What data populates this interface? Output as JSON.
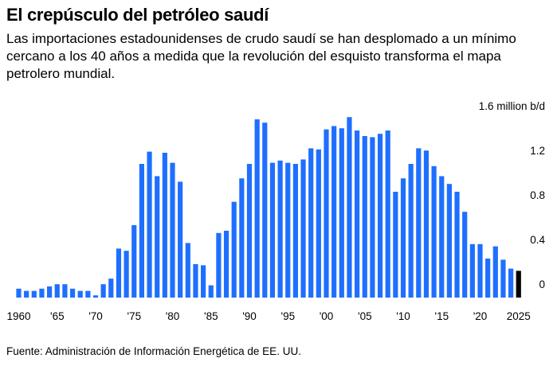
{
  "title": "El crepúsculo del petróleo saudí",
  "subtitle": "Las importaciones estadounidenses de crudo saudí se han desplomado a un mínimo cercano a los 40 años a medida que la revolución del esquisto transforma el mapa petrolero mundial.",
  "source": "Fuente: Administración de Información Energética de EE. UU.",
  "colors": {
    "bar": "#1f6fff",
    "highlight_bar": "#000000"
  },
  "chart_data": {
    "type": "bar",
    "title": "",
    "xlabel": "",
    "ylabel": "",
    "y_unit": "million b/d",
    "ylim": [
      0,
      1.6
    ],
    "grid": false,
    "y_axis_side": "right",
    "y_ticks": [
      {
        "value": 0,
        "label": "0"
      },
      {
        "value": 0.4,
        "label": "0.4"
      },
      {
        "value": 0.8,
        "label": "0.8"
      },
      {
        "value": 1.2,
        "label": "1.2"
      },
      {
        "value": 1.6,
        "label": "1.6 million b/d"
      }
    ],
    "x_ticks": [
      {
        "year": 1960,
        "label": "1960"
      },
      {
        "year": 1965,
        "label": "'65"
      },
      {
        "year": 1970,
        "label": "'70"
      },
      {
        "year": 1975,
        "label": "'75"
      },
      {
        "year": 1980,
        "label": "'80"
      },
      {
        "year": 1985,
        "label": "'85"
      },
      {
        "year": 1990,
        "label": "'90"
      },
      {
        "year": 1995,
        "label": "'95"
      },
      {
        "year": 2000,
        "label": "'00"
      },
      {
        "year": 2005,
        "label": "'05"
      },
      {
        "year": 2010,
        "label": "'10"
      },
      {
        "year": 2015,
        "label": "'15"
      },
      {
        "year": 2020,
        "label": "'20"
      },
      {
        "year": 2025,
        "label": "2025"
      }
    ],
    "highlight_category": 2025,
    "categories": [
      1960,
      1961,
      1962,
      1963,
      1964,
      1965,
      1966,
      1967,
      1968,
      1969,
      1970,
      1971,
      1972,
      1973,
      1974,
      1975,
      1976,
      1977,
      1978,
      1979,
      1980,
      1981,
      1982,
      1983,
      1984,
      1985,
      1986,
      1987,
      1988,
      1989,
      1990,
      1991,
      1992,
      1993,
      1994,
      1995,
      1996,
      1997,
      1998,
      1999,
      2000,
      2001,
      2002,
      2003,
      2004,
      2005,
      2006,
      2007,
      2008,
      2009,
      2010,
      2011,
      2012,
      2013,
      2014,
      2015,
      2016,
      2017,
      2018,
      2019,
      2020,
      2021,
      2022,
      2023,
      2024,
      2025
    ],
    "values": [
      0.08,
      0.06,
      0.06,
      0.08,
      0.1,
      0.12,
      0.12,
      0.08,
      0.06,
      0.06,
      0.02,
      0.12,
      0.17,
      0.44,
      0.42,
      0.65,
      1.2,
      1.31,
      1.09,
      1.3,
      1.21,
      1.04,
      0.49,
      0.3,
      0.29,
      0.11,
      0.58,
      0.6,
      0.86,
      1.07,
      1.2,
      1.6,
      1.57,
      1.21,
      1.23,
      1.21,
      1.2,
      1.24,
      1.34,
      1.33,
      1.51,
      1.54,
      1.52,
      1.62,
      1.5,
      1.45,
      1.44,
      1.47,
      1.5,
      0.95,
      1.07,
      1.2,
      1.34,
      1.32,
      1.18,
      1.09,
      1.02,
      0.95,
      0.77,
      0.48,
      0.48,
      0.35,
      0.46,
      0.34,
      0.26,
      0.24
    ]
  }
}
